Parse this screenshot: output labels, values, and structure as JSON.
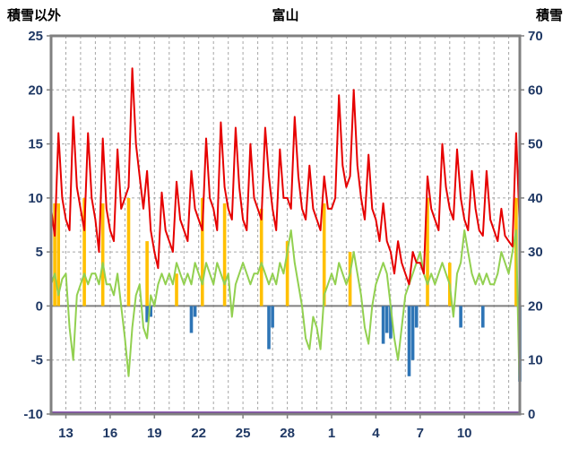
{
  "chart_data": {
    "type": "line",
    "title": "富山",
    "left_axis": {
      "label": "積雪以外",
      "min": -10,
      "max": 25,
      "ticks": [
        -10,
        -5,
        0,
        5,
        10,
        15,
        20,
        25
      ]
    },
    "right_axis": {
      "label": "積雪",
      "min": 0,
      "max": 70,
      "ticks": [
        0,
        10,
        20,
        30,
        40,
        50,
        60,
        70
      ]
    },
    "x_axis": {
      "domain": [
        12,
        43.75
      ],
      "tick_days": [
        13,
        16,
        19,
        22,
        25,
        28,
        31,
        34,
        37,
        40
      ],
      "tick_labels": [
        "13",
        "16",
        "19",
        "22",
        "25",
        "28",
        "1",
        "4",
        "7",
        "10"
      ],
      "day_grid_interval": 1
    },
    "sampling": {
      "start_day": 12,
      "step_days": 0.25
    },
    "colors": {
      "grid": "#a6a6a6",
      "border": "#808080",
      "zero_line": "#808080",
      "tick_label": "#1f3864",
      "title": "#000000"
    },
    "series": [
      {
        "name": "orange-bars",
        "type": "bar",
        "axis": "left",
        "color": "#ffc000",
        "values": [
          0,
          9.5,
          9.5,
          0,
          0,
          0,
          0,
          0,
          0,
          10,
          0,
          0,
          0,
          0,
          9.5,
          0,
          0,
          0,
          0,
          0,
          0,
          10,
          0,
          0,
          0,
          0,
          6,
          0,
          0,
          0,
          0,
          0,
          0,
          0,
          3,
          0,
          0,
          0,
          0,
          0,
          0,
          10,
          0,
          0,
          0,
          0,
          0,
          9.5,
          0,
          0,
          0,
          0,
          0,
          0,
          0,
          0,
          0,
          9,
          0,
          0,
          0,
          0,
          0,
          0,
          6,
          0,
          0,
          0,
          0,
          0,
          0,
          0,
          0,
          0,
          9.5,
          0,
          0,
          0,
          0,
          0,
          0,
          5,
          0,
          0,
          0,
          0,
          0,
          0,
          0,
          0,
          0,
          0,
          0,
          0,
          0,
          0,
          0,
          0,
          0,
          0,
          0,
          0,
          10,
          0,
          0,
          0,
          0,
          0,
          4,
          0,
          0,
          0,
          0,
          0,
          0,
          0,
          0,
          0,
          0,
          0,
          0,
          0,
          0,
          0,
          0,
          0,
          10,
          0
        ]
      },
      {
        "name": "blue-bars",
        "type": "bar",
        "axis": "left",
        "color": "#2e75b6",
        "values": [
          0,
          0,
          0,
          0,
          0,
          0,
          0,
          0,
          0,
          0,
          0,
          0,
          0,
          0,
          0,
          0,
          0,
          0,
          0,
          0,
          0,
          0,
          0,
          0,
          0,
          0,
          -1.5,
          -1,
          0,
          0,
          0,
          0,
          0,
          0,
          0,
          0,
          0,
          0,
          -2.5,
          -1,
          0,
          0,
          0,
          0,
          0,
          0,
          0,
          0,
          0,
          0,
          0,
          0,
          0,
          0,
          0,
          0,
          0,
          0,
          0,
          -4,
          -2,
          0,
          0,
          0,
          0,
          0,
          0,
          0,
          0,
          0,
          0,
          0,
          0,
          0,
          0,
          0,
          0,
          0,
          0,
          0,
          0,
          0,
          0,
          0,
          0,
          0,
          0,
          0,
          0,
          0,
          -3.5,
          -2.5,
          -3,
          0,
          0,
          0,
          0,
          -6.5,
          -5,
          -2,
          0,
          0,
          0,
          0,
          0,
          0,
          0,
          0,
          0,
          0,
          0,
          -2,
          0,
          0,
          0,
          0,
          0,
          -2,
          0,
          0,
          0,
          0,
          0,
          0,
          0,
          0,
          0,
          -7
        ]
      },
      {
        "name": "green-line",
        "type": "line",
        "axis": "left",
        "color": "#92d050",
        "width": 2,
        "values": [
          2,
          3,
          1,
          2.5,
          3,
          -2,
          -5,
          1,
          2,
          3,
          2,
          3,
          3,
          2,
          4,
          2,
          2,
          1,
          3,
          0,
          -3,
          -6.5,
          -2,
          1,
          2,
          -2,
          -3,
          1,
          0,
          2,
          3,
          2,
          3,
          2,
          4,
          3,
          2,
          3,
          2,
          4,
          3,
          2,
          4,
          3,
          2,
          4,
          3,
          2,
          3,
          -1,
          2,
          3,
          4,
          3,
          2,
          3,
          3,
          4,
          3,
          2,
          3,
          2,
          4,
          3,
          5,
          7,
          4,
          2,
          0,
          -3,
          -4,
          -1,
          -2,
          -4,
          1,
          2,
          3,
          2,
          4,
          3,
          2,
          3,
          5,
          3,
          1,
          -2,
          -3.5,
          0,
          2,
          3,
          4,
          3,
          0,
          -3,
          -5,
          -2,
          1,
          2,
          3,
          4,
          5,
          3,
          2,
          3,
          2,
          3,
          4,
          3,
          2,
          -1,
          3,
          4,
          7,
          5,
          3,
          2,
          3,
          2,
          3,
          2,
          2,
          3,
          5,
          4,
          3,
          5,
          7,
          -9
        ]
      },
      {
        "name": "red-line",
        "type": "line",
        "axis": "left",
        "color": "#e60000",
        "width": 2,
        "values": [
          9,
          6.5,
          16,
          10,
          8,
          7,
          17.5,
          11,
          9,
          7,
          16,
          10,
          8,
          5,
          15.5,
          9,
          7,
          6,
          14.5,
          9,
          10,
          11,
          22,
          15,
          12,
          9,
          12.5,
          7,
          5,
          3.5,
          10.5,
          7,
          6,
          5,
          11.5,
          8,
          7,
          6,
          12.5,
          9,
          8,
          7,
          15.5,
          10,
          9,
          7,
          17,
          11,
          9,
          8,
          16.5,
          11,
          8,
          7,
          15,
          10,
          9,
          8,
          16.5,
          12,
          9,
          7,
          14.5,
          10,
          10,
          9,
          17.5,
          12,
          9,
          8,
          13,
          9,
          8,
          7,
          12,
          9,
          9,
          10,
          19.5,
          13,
          11,
          12,
          20,
          13,
          10,
          8,
          14,
          9,
          8,
          6,
          9.5,
          6,
          5,
          3,
          6,
          4,
          3,
          2,
          5,
          4,
          4,
          3,
          12,
          9,
          8,
          7,
          15,
          11,
          9,
          8,
          14.5,
          10,
          8,
          7,
          12.5,
          9,
          7,
          6.5,
          12.5,
          8,
          7,
          6,
          9,
          6.5,
          6,
          5.5,
          16,
          7
        ]
      },
      {
        "name": "snow-depth-line",
        "type": "constant",
        "axis": "right",
        "color": "#7030a0",
        "width": 2.5,
        "value": 0
      }
    ]
  }
}
